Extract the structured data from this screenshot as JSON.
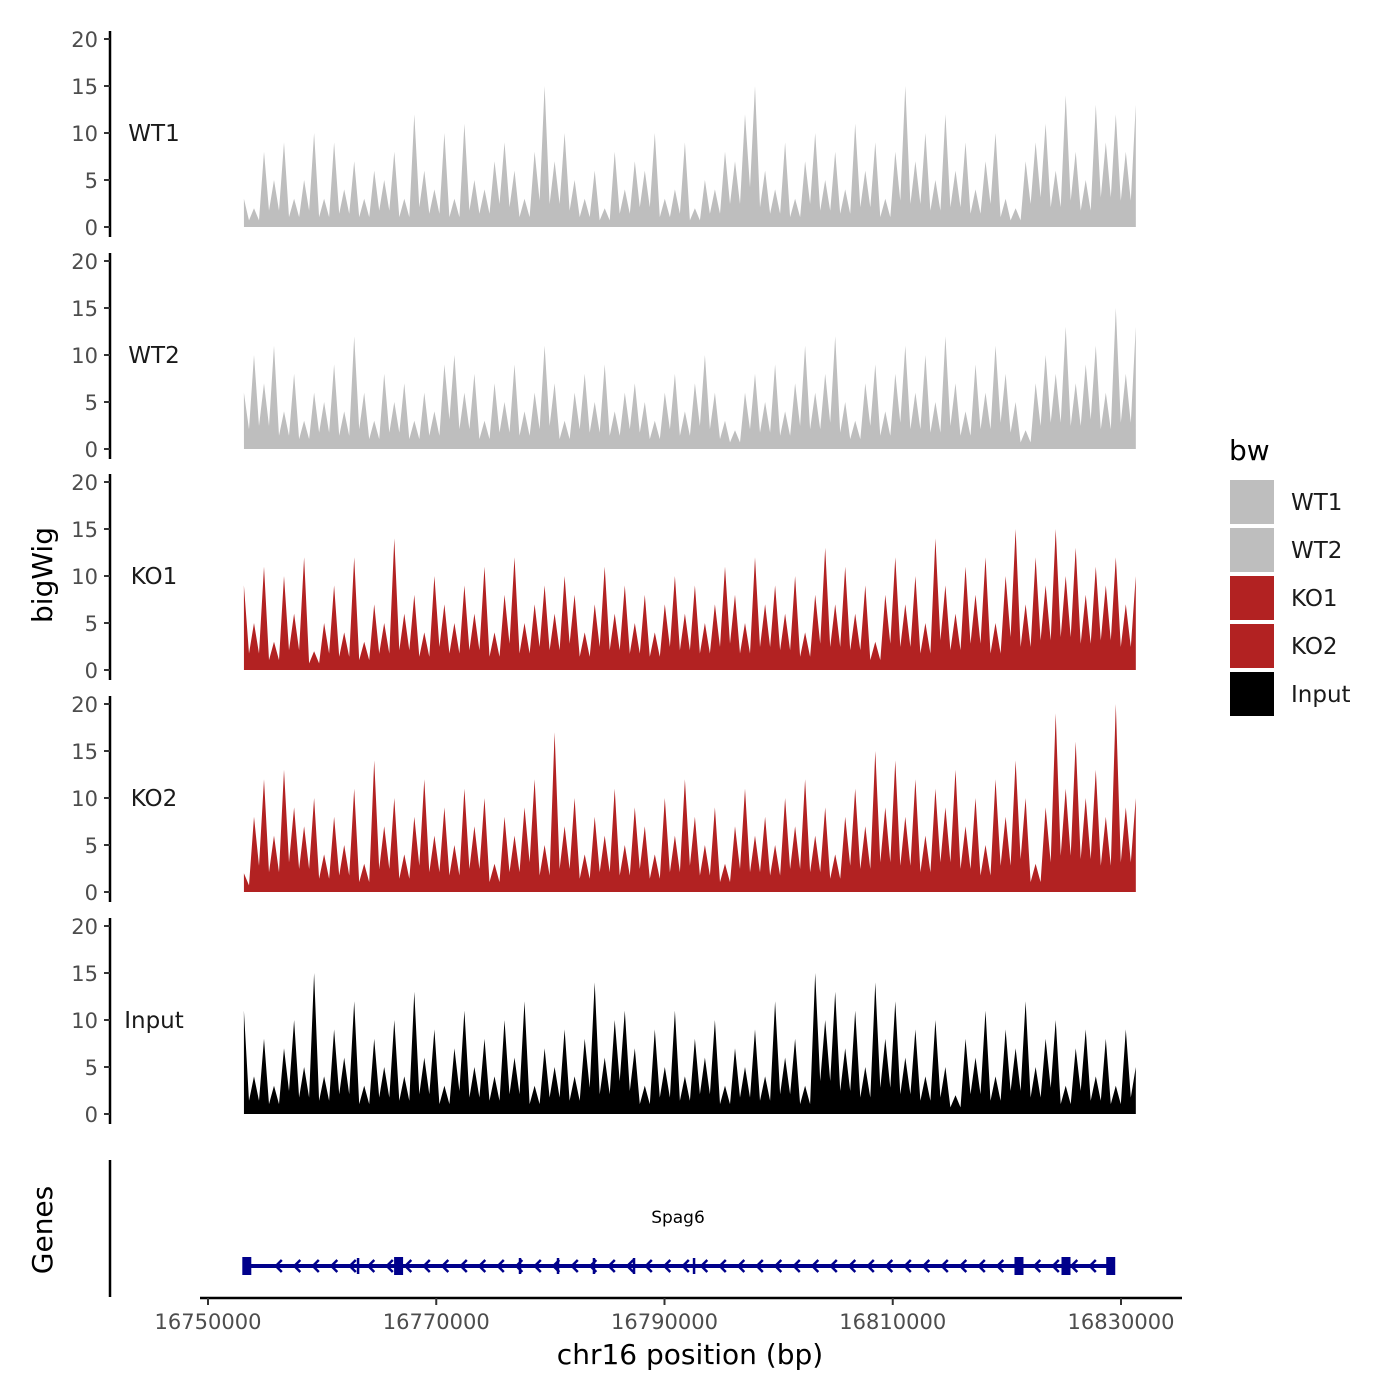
{
  "chart_data": {
    "type": "area",
    "ylabel": "bigWig",
    "xlabel": "chr16 position (bp)",
    "x_range": [
      16753150,
      16831300
    ],
    "xlim": [
      16749000,
      16834000
    ],
    "x_ticks": [
      16750000,
      16770000,
      16790000,
      16810000,
      16830000
    ],
    "x_tick_labels": [
      "16750000",
      "16770000",
      "16790000",
      "16810000",
      "16830000"
    ],
    "ylim": [
      0,
      20
    ],
    "y_ticks": [
      0,
      5,
      10,
      15,
      20
    ],
    "y_tick_labels": [
      "0",
      "5",
      "10",
      "15",
      "20"
    ],
    "legend": {
      "title": "bw",
      "position": "right",
      "entries": [
        {
          "label": "WT1",
          "color": "#bebebe"
        },
        {
          "label": "WT2",
          "color": "#bebebe"
        },
        {
          "label": "KO1",
          "color": "#b22222"
        },
        {
          "label": "KO2",
          "color": "#b22222"
        },
        {
          "label": "Input",
          "color": "#000000"
        }
      ]
    },
    "series": [
      {
        "name": "WT1",
        "color": "#bebebe",
        "values": [
          3,
          2,
          8,
          5,
          9,
          3,
          5,
          10,
          3,
          9,
          4,
          7,
          3,
          6,
          5,
          8,
          3,
          12,
          6,
          4,
          10,
          3,
          11,
          5,
          4,
          7,
          9,
          6,
          3,
          8,
          15,
          7,
          10,
          5,
          3,
          6,
          2,
          8,
          4,
          7,
          6,
          10,
          3,
          4,
          9,
          2,
          5,
          4,
          8,
          7,
          12,
          15,
          6,
          4,
          9,
          3,
          7,
          10,
          5,
          8,
          4,
          11,
          6,
          9,
          3,
          8,
          15,
          7,
          10,
          5,
          12,
          6,
          9,
          4,
          7,
          10,
          3,
          2,
          7,
          9,
          11,
          6,
          14,
          8,
          5,
          13,
          9,
          12,
          8,
          13
        ]
      },
      {
        "name": "WT2",
        "color": "#bebebe",
        "values": [
          6,
          10,
          7,
          11,
          4,
          8,
          3,
          6,
          5,
          9,
          4,
          12,
          6,
          3,
          8,
          5,
          7,
          3,
          6,
          4,
          9,
          10,
          6,
          8,
          3,
          7,
          5,
          9,
          4,
          6,
          11,
          7,
          3,
          6,
          8,
          5,
          9,
          4,
          6,
          7,
          5,
          3,
          6,
          8,
          4,
          7,
          10,
          6,
          3,
          2,
          6,
          8,
          5,
          9,
          4,
          7,
          11,
          6,
          8,
          12,
          5,
          3,
          7,
          9,
          4,
          8,
          11,
          6,
          10,
          5,
          12,
          7,
          4,
          9,
          6,
          11,
          8,
          5,
          2,
          7,
          10,
          8,
          13,
          7,
          9,
          11,
          6,
          15,
          8,
          13
        ]
      },
      {
        "name": "KO1",
        "color": "#b22222",
        "values": [
          9,
          5,
          11,
          3,
          10,
          6,
          12,
          2,
          5,
          9,
          4,
          12,
          3,
          7,
          5,
          14,
          6,
          8,
          4,
          10,
          7,
          5,
          9,
          6,
          11,
          4,
          8,
          12,
          5,
          7,
          9,
          6,
          10,
          8,
          4,
          7,
          11,
          6,
          9,
          5,
          8,
          4,
          7,
          10,
          6,
          9,
          5,
          7,
          11,
          8,
          5,
          12,
          7,
          9,
          6,
          10,
          4,
          8,
          13,
          7,
          11,
          6,
          9,
          3,
          8,
          12,
          7,
          10,
          5,
          14,
          9,
          6,
          11,
          8,
          12,
          5,
          10,
          15,
          7,
          12,
          9,
          15,
          10,
          13,
          8,
          11,
          9,
          12,
          7,
          10
        ]
      },
      {
        "name": "KO2",
        "color": "#b22222",
        "values": [
          2,
          8,
          12,
          6,
          13,
          9,
          7,
          10,
          4,
          8,
          5,
          11,
          3,
          14,
          7,
          10,
          4,
          8,
          12,
          6,
          9,
          5,
          11,
          7,
          10,
          3,
          8,
          6,
          9,
          12,
          5,
          17,
          7,
          10,
          4,
          8,
          6,
          11,
          5,
          9,
          7,
          4,
          10,
          6,
          12,
          8,
          5,
          9,
          3,
          7,
          11,
          6,
          8,
          5,
          10,
          7,
          12,
          6,
          9,
          4,
          8,
          11,
          7,
          15,
          9,
          14,
          8,
          12,
          6,
          11,
          9,
          13,
          7,
          10,
          5,
          12,
          8,
          14,
          10,
          3,
          9,
          19,
          11,
          16,
          10,
          13,
          8,
          20,
          9,
          10
        ]
      },
      {
        "name": "Input",
        "color": "#000000",
        "values": [
          11,
          4,
          8,
          3,
          7,
          10,
          5,
          15,
          4,
          9,
          6,
          12,
          3,
          8,
          5,
          10,
          4,
          13,
          6,
          9,
          3,
          7,
          11,
          5,
          8,
          4,
          10,
          6,
          12,
          3,
          7,
          5,
          9,
          4,
          8,
          14,
          6,
          10,
          11,
          7,
          3,
          9,
          5,
          11,
          4,
          8,
          6,
          10,
          3,
          7,
          5,
          9,
          4,
          12,
          6,
          8,
          3,
          15,
          10,
          13,
          7,
          11,
          5,
          14,
          8,
          12,
          6,
          9,
          4,
          10,
          5,
          2,
          8,
          6,
          11,
          4,
          9,
          7,
          12,
          5,
          8,
          10,
          3,
          7,
          9,
          4,
          8,
          3,
          9,
          5
        ]
      }
    ],
    "genes": {
      "label": "Genes",
      "name": "Spag6",
      "strand": "-",
      "start": 16753400,
      "end": 16829100,
      "exons": [
        16753400,
        16763150,
        16766700,
        16777340,
        16780670,
        16783820,
        16787330,
        16792590,
        16821060,
        16825180,
        16829100
      ],
      "color": "#00008b"
    }
  }
}
